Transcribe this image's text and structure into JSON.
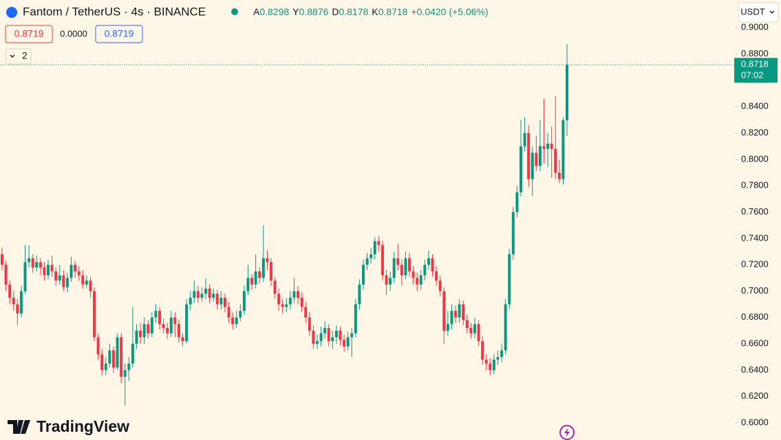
{
  "chart_data": {
    "type": "candlestick",
    "title": "Fantom / TetherUS · 4s · BINANCE",
    "legend": {
      "open_label": "A",
      "open": "0.8298",
      "high_label": "Y",
      "high": "0.8876",
      "low_label": "D",
      "low": "0.8178",
      "close_label": "K",
      "close": "0.8718",
      "change": "+0.0420 (+5.06%)"
    },
    "inputs": [
      "0.8719",
      "0.0000",
      "0.8719"
    ],
    "indicator_count": "2",
    "currency": "USDT",
    "last_price_label": "0.8718",
    "countdown": "07:02",
    "brand": "TradingView",
    "up_color": "#089981",
    "down_color": "#f23645",
    "ylim": [
      0.587,
      0.921
    ],
    "yticks": [
      {
        "value": 0.6,
        "label": "0.6000"
      },
      {
        "value": 0.62,
        "label": "0.6200"
      },
      {
        "value": 0.64,
        "label": "0.6400"
      },
      {
        "value": 0.66,
        "label": "0.6600"
      },
      {
        "value": 0.68,
        "label": "0.6800"
      },
      {
        "value": 0.7,
        "label": "0.7000"
      },
      {
        "value": 0.72,
        "label": "0.7200"
      },
      {
        "value": 0.74,
        "label": "0.7400"
      },
      {
        "value": 0.76,
        "label": "0.7600"
      },
      {
        "value": 0.78,
        "label": "0.7800"
      },
      {
        "value": 0.8,
        "label": "0.8000"
      },
      {
        "value": 0.82,
        "label": "0.8200"
      },
      {
        "value": 0.84,
        "label": "0.8400"
      },
      {
        "value": 0.86,
        "label": "0.8600"
      },
      {
        "value": 0.88,
        "label": "0.8800"
      },
      {
        "value": 0.9,
        "label": "0.9000"
      }
    ],
    "candles": [
      [
        0.728,
        0.733,
        0.716,
        0.72
      ],
      [
        0.72,
        0.723,
        0.7,
        0.705
      ],
      [
        0.705,
        0.708,
        0.69,
        0.695
      ],
      [
        0.695,
        0.7,
        0.685,
        0.69
      ],
      [
        0.69,
        0.694,
        0.674,
        0.683
      ],
      [
        0.683,
        0.704,
        0.68,
        0.7
      ],
      [
        0.7,
        0.735,
        0.698,
        0.722
      ],
      [
        0.722,
        0.735,
        0.718,
        0.725
      ],
      [
        0.725,
        0.728,
        0.714,
        0.718
      ],
      [
        0.718,
        0.727,
        0.715,
        0.722
      ],
      [
        0.722,
        0.725,
        0.712,
        0.718
      ],
      [
        0.718,
        0.722,
        0.708,
        0.712
      ],
      [
        0.712,
        0.724,
        0.709,
        0.72
      ],
      [
        0.72,
        0.727,
        0.711,
        0.715
      ],
      [
        0.715,
        0.718,
        0.704,
        0.708
      ],
      [
        0.708,
        0.72,
        0.705,
        0.712
      ],
      [
        0.712,
        0.716,
        0.7,
        0.703
      ],
      [
        0.703,
        0.714,
        0.699,
        0.71
      ],
      [
        0.71,
        0.726,
        0.707,
        0.72
      ],
      [
        0.72,
        0.723,
        0.71,
        0.715
      ],
      [
        0.715,
        0.719,
        0.708,
        0.712
      ],
      [
        0.712,
        0.716,
        0.702,
        0.705
      ],
      [
        0.705,
        0.712,
        0.702,
        0.708
      ],
      [
        0.708,
        0.711,
        0.695,
        0.7
      ],
      [
        0.7,
        0.703,
        0.662,
        0.665
      ],
      [
        0.665,
        0.668,
        0.648,
        0.652
      ],
      [
        0.652,
        0.656,
        0.636,
        0.64
      ],
      [
        0.64,
        0.65,
        0.636,
        0.645
      ],
      [
        0.645,
        0.66,
        0.642,
        0.655
      ],
      [
        0.655,
        0.658,
        0.638,
        0.642
      ],
      [
        0.642,
        0.668,
        0.64,
        0.665
      ],
      [
        0.665,
        0.668,
        0.63,
        0.635
      ],
      [
        0.635,
        0.645,
        0.613,
        0.64
      ],
      [
        0.64,
        0.65,
        0.632,
        0.645
      ],
      [
        0.645,
        0.688,
        0.642,
        0.66
      ],
      [
        0.66,
        0.675,
        0.656,
        0.67
      ],
      [
        0.67,
        0.676,
        0.66,
        0.665
      ],
      [
        0.665,
        0.68,
        0.66,
        0.675
      ],
      [
        0.675,
        0.678,
        0.664,
        0.668
      ],
      [
        0.668,
        0.684,
        0.665,
        0.68
      ],
      [
        0.68,
        0.69,
        0.676,
        0.685
      ],
      [
        0.685,
        0.688,
        0.671,
        0.675
      ],
      [
        0.675,
        0.679,
        0.668,
        0.672
      ],
      [
        0.672,
        0.676,
        0.664,
        0.668
      ],
      [
        0.668,
        0.685,
        0.665,
        0.68
      ],
      [
        0.68,
        0.684,
        0.665,
        0.675
      ],
      [
        0.675,
        0.678,
        0.661,
        0.665
      ],
      [
        0.665,
        0.668,
        0.658,
        0.662
      ],
      [
        0.662,
        0.694,
        0.66,
        0.69
      ],
      [
        0.69,
        0.7,
        0.686,
        0.695
      ],
      [
        0.695,
        0.708,
        0.691,
        0.7
      ],
      [
        0.7,
        0.704,
        0.691,
        0.695
      ],
      [
        0.695,
        0.703,
        0.692,
        0.698
      ],
      [
        0.698,
        0.71,
        0.694,
        0.702
      ],
      [
        0.702,
        0.705,
        0.691,
        0.695
      ],
      [
        0.695,
        0.702,
        0.692,
        0.698
      ],
      [
        0.698,
        0.701,
        0.686,
        0.69
      ],
      [
        0.69,
        0.7,
        0.686,
        0.695
      ],
      [
        0.695,
        0.698,
        0.684,
        0.688
      ],
      [
        0.688,
        0.692,
        0.676,
        0.68
      ],
      [
        0.68,
        0.684,
        0.671,
        0.675
      ],
      [
        0.675,
        0.685,
        0.672,
        0.68
      ],
      [
        0.68,
        0.69,
        0.677,
        0.685
      ],
      [
        0.685,
        0.704,
        0.682,
        0.7
      ],
      [
        0.7,
        0.72,
        0.697,
        0.71
      ],
      [
        0.71,
        0.713,
        0.701,
        0.705
      ],
      [
        0.705,
        0.728,
        0.702,
        0.715
      ],
      [
        0.715,
        0.718,
        0.706,
        0.71
      ],
      [
        0.71,
        0.75,
        0.707,
        0.725
      ],
      [
        0.725,
        0.731,
        0.716,
        0.722
      ],
      [
        0.722,
        0.725,
        0.704,
        0.708
      ],
      [
        0.708,
        0.711,
        0.694,
        0.698
      ],
      [
        0.698,
        0.702,
        0.685,
        0.69
      ],
      [
        0.69,
        0.694,
        0.683,
        0.688
      ],
      [
        0.688,
        0.695,
        0.684,
        0.69
      ],
      [
        0.69,
        0.7,
        0.686,
        0.695
      ],
      [
        0.695,
        0.71,
        0.691,
        0.7
      ],
      [
        0.7,
        0.704,
        0.69,
        0.695
      ],
      [
        0.695,
        0.699,
        0.684,
        0.688
      ],
      [
        0.688,
        0.692,
        0.676,
        0.68
      ],
      [
        0.68,
        0.684,
        0.666,
        0.67
      ],
      [
        0.67,
        0.674,
        0.656,
        0.66
      ],
      [
        0.66,
        0.667,
        0.656,
        0.662
      ],
      [
        0.662,
        0.673,
        0.658,
        0.668
      ],
      [
        0.668,
        0.677,
        0.664,
        0.672
      ],
      [
        0.672,
        0.675,
        0.658,
        0.662
      ],
      [
        0.662,
        0.67,
        0.656,
        0.665
      ],
      [
        0.665,
        0.674,
        0.66,
        0.67
      ],
      [
        0.67,
        0.673,
        0.659,
        0.663
      ],
      [
        0.663,
        0.667,
        0.654,
        0.658
      ],
      [
        0.658,
        0.669,
        0.655,
        0.665
      ],
      [
        0.665,
        0.672,
        0.65,
        0.668
      ],
      [
        0.668,
        0.694,
        0.665,
        0.69
      ],
      [
        0.69,
        0.709,
        0.686,
        0.705
      ],
      [
        0.705,
        0.724,
        0.701,
        0.72
      ],
      [
        0.72,
        0.729,
        0.716,
        0.725
      ],
      [
        0.725,
        0.733,
        0.721,
        0.728
      ],
      [
        0.728,
        0.741,
        0.724,
        0.738
      ],
      [
        0.738,
        0.742,
        0.73,
        0.735
      ],
      [
        0.735,
        0.738,
        0.708,
        0.712
      ],
      [
        0.712,
        0.716,
        0.697,
        0.705
      ],
      [
        0.705,
        0.715,
        0.7,
        0.71
      ],
      [
        0.71,
        0.73,
        0.706,
        0.725
      ],
      [
        0.725,
        0.736,
        0.716,
        0.72
      ],
      [
        0.72,
        0.724,
        0.704,
        0.712
      ],
      [
        0.712,
        0.73,
        0.709,
        0.725
      ],
      [
        0.725,
        0.729,
        0.711,
        0.715
      ],
      [
        0.715,
        0.719,
        0.705,
        0.71
      ],
      [
        0.71,
        0.714,
        0.7,
        0.705
      ],
      [
        0.705,
        0.716,
        0.701,
        0.712
      ],
      [
        0.712,
        0.724,
        0.708,
        0.72
      ],
      [
        0.72,
        0.731,
        0.716,
        0.725
      ],
      [
        0.725,
        0.728,
        0.711,
        0.715
      ],
      [
        0.715,
        0.719,
        0.704,
        0.708
      ],
      [
        0.708,
        0.712,
        0.696,
        0.7
      ],
      [
        0.7,
        0.703,
        0.66,
        0.67
      ],
      [
        0.67,
        0.685,
        0.666,
        0.675
      ],
      [
        0.675,
        0.69,
        0.671,
        0.685
      ],
      [
        0.685,
        0.689,
        0.676,
        0.68
      ],
      [
        0.68,
        0.694,
        0.676,
        0.69
      ],
      [
        0.69,
        0.693,
        0.674,
        0.678
      ],
      [
        0.678,
        0.682,
        0.668,
        0.672
      ],
      [
        0.672,
        0.676,
        0.664,
        0.668
      ],
      [
        0.668,
        0.68,
        0.664,
        0.675
      ],
      [
        0.675,
        0.678,
        0.658,
        0.662
      ],
      [
        0.662,
        0.666,
        0.644,
        0.648
      ],
      [
        0.648,
        0.652,
        0.64,
        0.645
      ],
      [
        0.645,
        0.649,
        0.636,
        0.64
      ],
      [
        0.64,
        0.652,
        0.637,
        0.648
      ],
      [
        0.648,
        0.655,
        0.644,
        0.65
      ],
      [
        0.65,
        0.66,
        0.646,
        0.655
      ],
      [
        0.655,
        0.694,
        0.652,
        0.69
      ],
      [
        0.69,
        0.732,
        0.686,
        0.728
      ],
      [
        0.728,
        0.764,
        0.724,
        0.76
      ],
      [
        0.76,
        0.78,
        0.756,
        0.775
      ],
      [
        0.775,
        0.83,
        0.772,
        0.81
      ],
      [
        0.81,
        0.832,
        0.806,
        0.82
      ],
      [
        0.82,
        0.826,
        0.779,
        0.785
      ],
      [
        0.785,
        0.81,
        0.772,
        0.805
      ],
      [
        0.805,
        0.818,
        0.791,
        0.795
      ],
      [
        0.795,
        0.83,
        0.791,
        0.81
      ],
      [
        0.81,
        0.846,
        0.797,
        0.808
      ],
      [
        0.808,
        0.82,
        0.794,
        0.812
      ],
      [
        0.812,
        0.825,
        0.786,
        0.808
      ],
      [
        0.808,
        0.848,
        0.785,
        0.79
      ],
      [
        0.79,
        0.8,
        0.782,
        0.785
      ],
      [
        0.785,
        0.832,
        0.781,
        0.8298
      ],
      [
        0.8298,
        0.8876,
        0.8178,
        0.8718
      ]
    ]
  }
}
